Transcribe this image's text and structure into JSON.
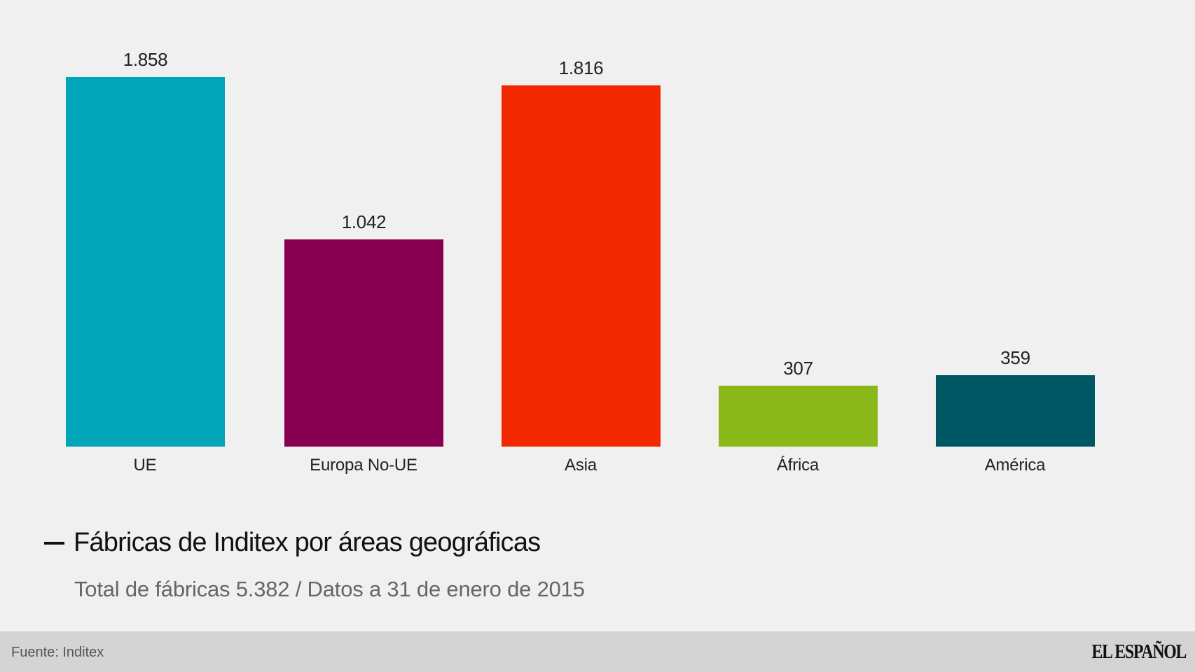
{
  "chart_data": {
    "type": "bar",
    "title": "Fábricas de Inditex por áreas geográficas",
    "subtitle": "Total de fábricas 5.382 / Datos a 31 de enero de 2015",
    "xlabel": "",
    "ylabel": "",
    "categories": [
      "UE",
      "Europa No-UE",
      "Asia",
      "África",
      "América"
    ],
    "values": [
      1858,
      1042,
      1816,
      307,
      359
    ],
    "value_labels": [
      "1.858",
      "1.042",
      "1.816",
      "307",
      "359"
    ],
    "colors": [
      "#00a5b9",
      "#880052",
      "#f22800",
      "#8ab81a",
      "#005764"
    ],
    "ylim": [
      0,
      1858
    ],
    "grid": false,
    "legend": "none",
    "source": "Fuente: Inditex"
  },
  "header": {
    "title": "Fábricas de Inditex por áreas geográficas",
    "subtitle": "Total de fábricas 5.382 / Datos a 31 de enero de 2015"
  },
  "bars": [
    {
      "category": "UE",
      "label": "1.858",
      "value": 1858,
      "color": "#00a5b9"
    },
    {
      "category": "Europa No-UE",
      "label": "1.042",
      "value": 1042,
      "color": "#880052"
    },
    {
      "category": "Asia",
      "label": "1.816",
      "value": 1816,
      "color": "#f22800"
    },
    {
      "category": "África",
      "label": "307",
      "value": 307,
      "color": "#8ab81a"
    },
    {
      "category": "América",
      "label": "359",
      "value": 359,
      "color": "#005764"
    }
  ],
  "footer": {
    "source": "Fuente: Inditex",
    "logo": "EL ESPAÑOL"
  }
}
